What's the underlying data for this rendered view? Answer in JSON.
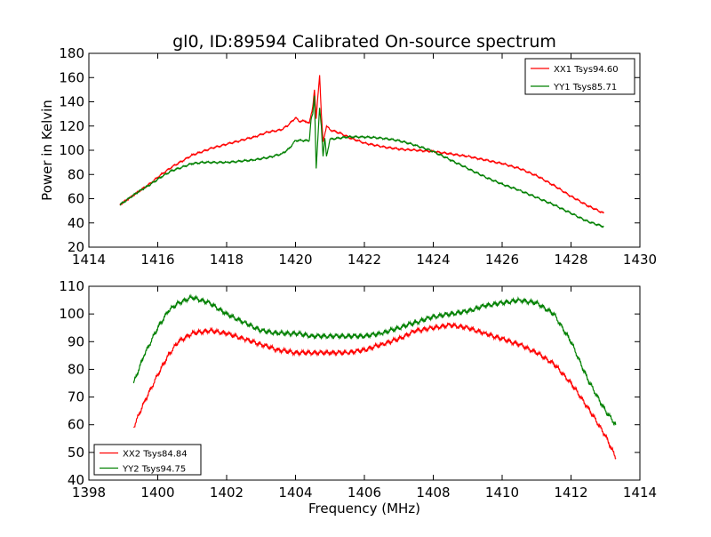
{
  "figure": {
    "title": "gl0, ID:89594 Calibrated On-source spectrum",
    "xlabel": "Frequency (MHz)"
  },
  "chart_data": [
    {
      "type": "line",
      "title": "gl0, ID:89594 Calibrated On-source spectrum",
      "xlabel": "",
      "ylabel": "Power in Kelvin",
      "xlim": [
        1414,
        1430
      ],
      "ylim": [
        20,
        180
      ],
      "xticks": [
        "1414",
        "1416",
        "1418",
        "1420",
        "1422",
        "1424",
        "1426",
        "1428",
        "1430"
      ],
      "yticks": [
        "20",
        "40",
        "60",
        "80",
        "100",
        "120",
        "140",
        "160",
        "180"
      ],
      "grid": false,
      "legend_position": "top-right",
      "series": [
        {
          "name": "XX1 Tsys94.60",
          "color": "#ff0000",
          "x": [
            1414.9,
            1415.2,
            1415.5,
            1415.8,
            1416.1,
            1416.4,
            1416.7,
            1417.0,
            1417.3,
            1417.6,
            1418.0,
            1418.4,
            1418.8,
            1419.2,
            1419.6,
            1419.8,
            1420.0,
            1420.1,
            1420.3,
            1420.4,
            1420.5,
            1420.55,
            1420.6,
            1420.65,
            1420.7,
            1420.75,
            1420.8,
            1420.9,
            1421.0,
            1421.3,
            1421.6,
            1422.0,
            1422.5,
            1423.0,
            1423.5,
            1424.0,
            1424.5,
            1425.0,
            1425.5,
            1426.0,
            1426.5,
            1427.0,
            1427.5,
            1428.0,
            1428.5,
            1428.95
          ],
          "y": [
            55,
            61,
            67,
            73,
            80,
            86,
            91,
            96,
            99,
            102,
            105,
            108,
            111,
            115,
            117,
            121,
            127,
            124,
            124,
            122,
            136,
            150,
            126,
            145,
            162,
            130,
            107,
            120,
            117,
            114,
            110,
            106,
            103,
            101,
            100,
            99,
            97,
            95,
            92,
            89,
            85,
            79,
            71,
            62,
            54,
            48
          ]
        },
        {
          "name": "YY1 Tsys85.71",
          "color": "#008000",
          "x": [
            1414.9,
            1415.2,
            1415.5,
            1415.8,
            1416.1,
            1416.4,
            1416.7,
            1417.0,
            1417.3,
            1417.6,
            1418.0,
            1418.4,
            1418.8,
            1419.2,
            1419.6,
            1419.8,
            1420.0,
            1420.2,
            1420.4,
            1420.45,
            1420.5,
            1420.55,
            1420.6,
            1420.65,
            1420.7,
            1420.75,
            1420.8,
            1420.85,
            1420.9,
            1421.0,
            1421.5,
            1422.0,
            1422.5,
            1423.0,
            1423.5,
            1424.0,
            1424.5,
            1425.0,
            1425.5,
            1426.0,
            1426.5,
            1427.0,
            1427.5,
            1428.0,
            1428.5,
            1428.95
          ],
          "y": [
            55,
            61,
            67,
            72,
            78,
            83,
            86,
            89,
            90,
            90,
            90,
            91,
            92,
            94,
            97,
            101,
            108,
            108,
            108,
            125,
            130,
            145,
            85,
            110,
            135,
            120,
            95,
            110,
            95,
            109,
            111,
            111,
            110,
            108,
            104,
            99,
            92,
            85,
            78,
            72,
            67,
            61,
            55,
            48,
            41,
            37
          ]
        }
      ]
    },
    {
      "type": "line",
      "title": "",
      "xlabel": "Frequency (MHz)",
      "ylabel": "",
      "xlim": [
        1398,
        1414
      ],
      "ylim": [
        40,
        110
      ],
      "xticks": [
        "1398",
        "1400",
        "1402",
        "1404",
        "1406",
        "1408",
        "1410",
        "1412",
        "1414"
      ],
      "yticks": [
        "40",
        "50",
        "60",
        "70",
        "80",
        "90",
        "100",
        "110"
      ],
      "grid": false,
      "legend_position": "bottom-left",
      "series": [
        {
          "name": "XX2 Tsys84.84",
          "color": "#ff0000",
          "x": [
            1399.3,
            1399.6,
            1400.0,
            1400.3,
            1400.6,
            1401.0,
            1401.5,
            1402.0,
            1402.5,
            1403.0,
            1403.5,
            1404.0,
            1404.5,
            1405.0,
            1405.5,
            1406.0,
            1406.5,
            1407.0,
            1407.5,
            1408.0,
            1408.5,
            1409.0,
            1409.5,
            1410.0,
            1410.5,
            1411.0,
            1411.5,
            1412.0,
            1412.5,
            1413.0,
            1413.3
          ],
          "y": [
            59,
            68,
            78,
            85,
            90,
            93,
            94,
            93,
            91,
            89,
            87,
            86,
            86,
            86,
            86,
            87,
            89,
            91,
            94,
            95,
            96,
            95,
            93,
            91,
            89,
            86,
            82,
            75,
            66,
            56,
            48
          ]
        },
        {
          "name": "YY2 Tsys94.75",
          "color": "#008000",
          "x": [
            1399.3,
            1399.6,
            1400.0,
            1400.3,
            1400.6,
            1401.0,
            1401.5,
            1402.0,
            1402.5,
            1403.0,
            1403.5,
            1404.0,
            1404.5,
            1405.0,
            1405.5,
            1406.0,
            1406.5,
            1407.0,
            1407.5,
            1408.0,
            1408.5,
            1409.0,
            1409.5,
            1410.0,
            1410.5,
            1411.0,
            1411.5,
            1412.0,
            1412.5,
            1413.0,
            1413.3
          ],
          "y": [
            75,
            85,
            95,
            101,
            104,
            106,
            104,
            100,
            97,
            94,
            93,
            93,
            92,
            92,
            92,
            92,
            93,
            95,
            97,
            99,
            100,
            101,
            103,
            104,
            105,
            104,
            100,
            90,
            76,
            65,
            60
          ]
        }
      ]
    }
  ]
}
